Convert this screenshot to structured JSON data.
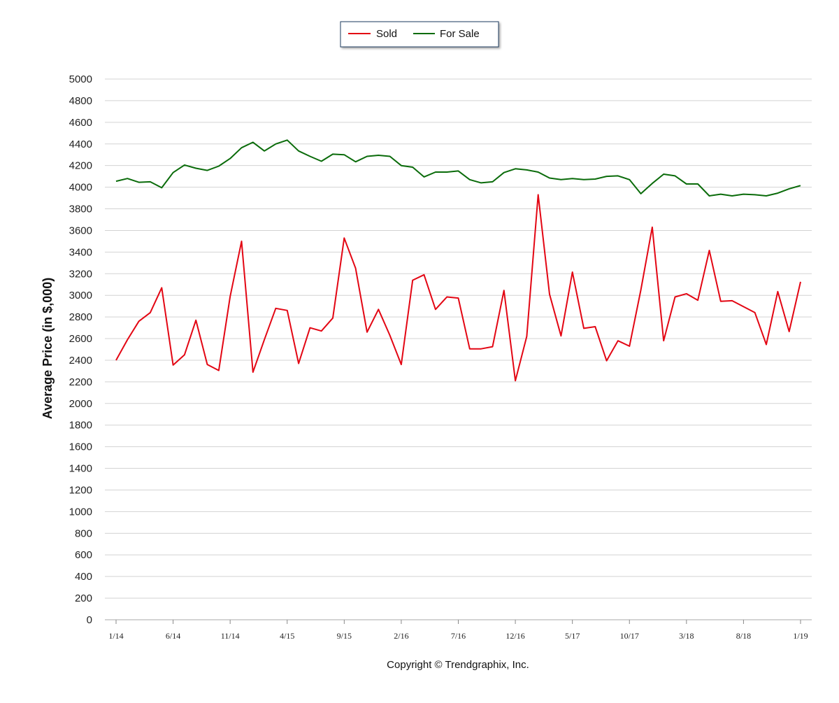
{
  "chart_data": {
    "type": "line",
    "ylabel": "Average Price (in $,000)",
    "ylim": [
      0,
      5000
    ],
    "ytick_step": 200,
    "grid": true,
    "legend_position": "top-center",
    "xtick_labels": [
      "1/14",
      "6/14",
      "11/14",
      "4/15",
      "9/15",
      "2/16",
      "7/16",
      "12/16",
      "5/17",
      "10/17",
      "3/18",
      "8/18",
      "1/19"
    ],
    "x": [
      "1/14",
      "2/14",
      "3/14",
      "4/14",
      "5/14",
      "6/14",
      "7/14",
      "8/14",
      "9/14",
      "10/14",
      "11/14",
      "12/14",
      "1/15",
      "2/15",
      "3/15",
      "4/15",
      "5/15",
      "6/15",
      "7/15",
      "8/15",
      "9/15",
      "10/15",
      "11/15",
      "12/15",
      "1/16",
      "2/16",
      "3/16",
      "4/16",
      "5/16",
      "6/16",
      "7/16",
      "8/16",
      "9/16",
      "10/16",
      "11/16",
      "12/16",
      "1/17",
      "2/17",
      "3/17",
      "4/17",
      "5/17",
      "6/17",
      "7/17",
      "8/17",
      "9/17",
      "10/17",
      "11/17",
      "12/17",
      "1/18",
      "2/18",
      "3/18",
      "4/18",
      "5/18",
      "6/18",
      "7/18",
      "8/18",
      "9/18",
      "10/18",
      "11/18",
      "12/18",
      "1/19"
    ],
    "series": [
      {
        "name": "Sold",
        "color": "#e30613",
        "values": [
          2400,
          2590,
          2760,
          2840,
          3070,
          2355,
          2450,
          2770,
          2360,
          2305,
          2990,
          3500,
          2290,
          2590,
          2880,
          2860,
          2370,
          2700,
          2670,
          2790,
          3530,
          3250,
          2660,
          2870,
          2630,
          2360,
          3140,
          3190,
          2870,
          2985,
          2975,
          2505,
          2505,
          2525,
          3045,
          2210,
          2620,
          3930,
          3010,
          2625,
          3215,
          2695,
          2710,
          2395,
          2580,
          2530,
          3050,
          3630,
          2580,
          2985,
          3015,
          2955,
          3415,
          2945,
          2950,
          2895,
          2840,
          2545,
          3035,
          2665,
          3125
        ]
      },
      {
        "name": "For Sale",
        "color": "#0a6b0a",
        "values": [
          4055,
          4080,
          4045,
          4050,
          3995,
          4135,
          4205,
          4175,
          4155,
          4195,
          4265,
          4365,
          4415,
          4335,
          4400,
          4435,
          4335,
          4285,
          4240,
          4305,
          4300,
          4235,
          4285,
          4295,
          4285,
          4200,
          4185,
          4095,
          4140,
          4140,
          4150,
          4070,
          4040,
          4050,
          4135,
          4170,
          4160,
          4140,
          4085,
          4070,
          4080,
          4070,
          4075,
          4100,
          4105,
          4070,
          3940,
          4035,
          4120,
          4105,
          4030,
          4030,
          3920,
          3935,
          3920,
          3935,
          3930,
          3920,
          3945,
          3985,
          4015
        ]
      }
    ]
  },
  "legend": {
    "items": [
      {
        "label": "Sold",
        "color": "#e30613"
      },
      {
        "label": "For Sale",
        "color": "#0a6b0a"
      }
    ]
  },
  "footer": {
    "copyright": "Copyright © Trendgraphix, Inc."
  }
}
